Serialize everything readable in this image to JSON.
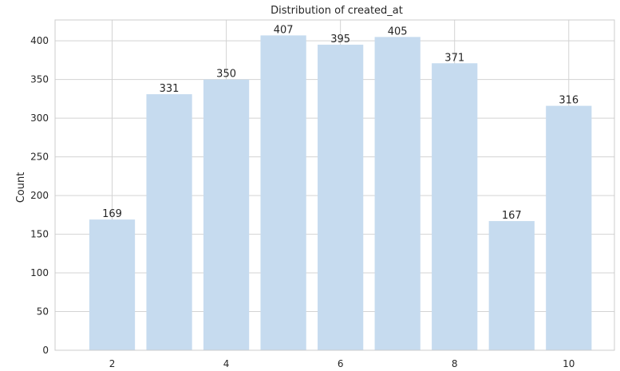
{
  "chart_data": {
    "type": "bar",
    "title": "Distribution of created_at",
    "xlabel": "",
    "ylabel": "Count",
    "categories": [
      "2",
      "3",
      "4",
      "5",
      "6",
      "7",
      "8",
      "9",
      "10"
    ],
    "values": [
      169,
      331,
      350,
      407,
      395,
      405,
      371,
      167,
      316
    ],
    "data_labels": [
      "169",
      "331",
      "350",
      "407",
      "395",
      "405",
      "371",
      "167",
      "316"
    ],
    "x_tick_labels": [
      "2",
      "4",
      "6",
      "8",
      "10"
    ],
    "x_ticks": [
      2,
      4,
      6,
      8,
      10
    ],
    "y_ticks": [
      0,
      50,
      100,
      150,
      200,
      250,
      300,
      350,
      400
    ],
    "y_tick_labels": [
      "0",
      "50",
      "100",
      "150",
      "200",
      "250",
      "300",
      "350",
      "400"
    ],
    "ylim": [
      0,
      427
    ],
    "xlim": [
      1.0,
      10.8
    ],
    "grid": true,
    "bar_color": "#c6dbef",
    "grid_color": "#d3d3d3",
    "axis_color": "#cccccc"
  }
}
